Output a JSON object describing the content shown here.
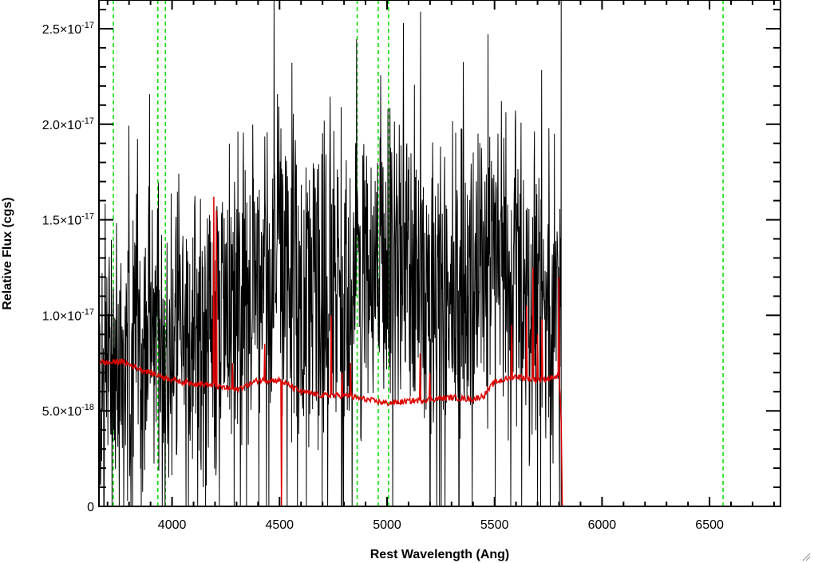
{
  "chart_data": {
    "type": "line",
    "title": "",
    "xlabel": "Rest Wavelength (Ang)",
    "ylabel": "Relative Flux (cgs)",
    "xlim": [
      3660,
      6830
    ],
    "ylim": [
      0,
      2.65e-17
    ],
    "x_ticks": [
      4000,
      4500,
      5000,
      5500,
      6000,
      6500
    ],
    "x_tick_labels": [
      "4000",
      "4500",
      "5000",
      "5500",
      "6000",
      "6500"
    ],
    "y_ticks": [
      0,
      5e-18,
      1e-17,
      1.5e-17,
      2e-17,
      2.5e-17
    ],
    "y_tick_labels": [
      {
        "mantissa": "0",
        "exp": ""
      },
      {
        "mantissa": "5.0×10",
        "exp": "-18"
      },
      {
        "mantissa": "1.0×10",
        "exp": "-17"
      },
      {
        "mantissa": "1.5×10",
        "exp": "-17"
      },
      {
        "mantissa": "2.0×10",
        "exp": "-17"
      },
      {
        "mantissa": "2.5×10",
        "exp": "-17"
      }
    ],
    "grid": false,
    "legend": "none",
    "reference_lines": {
      "color": "#00dd00",
      "style": "dashed",
      "x": [
        3727,
        3934,
        3969,
        4861,
        4959,
        5007,
        6563
      ]
    },
    "series": [
      {
        "color": "#000000",
        "style": "noisy spectrum",
        "x_range": [
          3660,
          5810
        ],
        "continuum": [
          [
            3660,
            6e-18
          ],
          [
            3800,
            7.5e-18
          ],
          [
            4000,
            8.5e-18
          ],
          [
            4200,
            9.5e-18
          ],
          [
            4400,
            1.25e-17
          ],
          [
            4500,
            1.3e-17
          ],
          [
            4600,
            1.15e-17
          ],
          [
            4800,
            1.1e-17
          ],
          [
            5000,
            1.2e-17
          ],
          [
            5200,
            1.25e-17
          ],
          [
            5400,
            1.2e-17
          ],
          [
            5600,
            1.3e-17
          ],
          [
            5700,
            1e-17
          ],
          [
            5810,
            9e-18
          ]
        ],
        "x_after": [
          5810,
          6830
        ],
        "y_after": 0
      },
      {
        "color": "#dd0000",
        "style": "error spectrum",
        "points": [
          [
            3660,
            7.6e-18
          ],
          [
            3700,
            7.5e-18
          ],
          [
            3760,
            7.6e-18
          ],
          [
            3850,
            7.2e-18
          ],
          [
            3950,
            6.8e-18
          ],
          [
            4050,
            6.5e-18
          ],
          [
            4150,
            6.4e-18
          ],
          [
            4200,
            6.3e-18
          ],
          [
            4300,
            6.1e-18
          ],
          [
            4400,
            6.6e-18
          ],
          [
            4500,
            6.6e-18
          ],
          [
            4600,
            6e-18
          ],
          [
            4700,
            5.8e-18
          ],
          [
            4800,
            5.8e-18
          ],
          [
            4900,
            5.6e-18
          ],
          [
            5000,
            5.4e-18
          ],
          [
            5100,
            5.5e-18
          ],
          [
            5200,
            5.6e-18
          ],
          [
            5300,
            5.7e-18
          ],
          [
            5400,
            5.6e-18
          ],
          [
            5450,
            5.8e-18
          ],
          [
            5500,
            6.5e-18
          ],
          [
            5600,
            6.8e-18
          ],
          [
            5700,
            6.6e-18
          ],
          [
            5800,
            6.8e-18
          ],
          [
            5810,
            4.5e-18
          ],
          [
            5815,
            0
          ],
          [
            6830,
            0
          ]
        ],
        "spikes": [
          [
            4195,
            1.62e-17
          ],
          [
            4205,
            1.55e-17
          ],
          [
            4280,
            7.5e-18
          ],
          [
            4430,
            8.5e-18
          ],
          [
            4740,
            1e-17
          ],
          [
            4790,
            7e-18
          ],
          [
            4830,
            7.5e-18
          ],
          [
            5155,
            8e-18
          ],
          [
            5200,
            7e-18
          ],
          [
            5580,
            9.5e-18
          ],
          [
            5650,
            1.05e-17
          ],
          [
            5680,
            1.25e-17
          ],
          [
            5700,
            9e-18
          ],
          [
            5720,
            9.8e-18
          ],
          [
            5800,
            1.2e-17
          ]
        ],
        "drop_at": [
          4510
        ]
      }
    ]
  }
}
